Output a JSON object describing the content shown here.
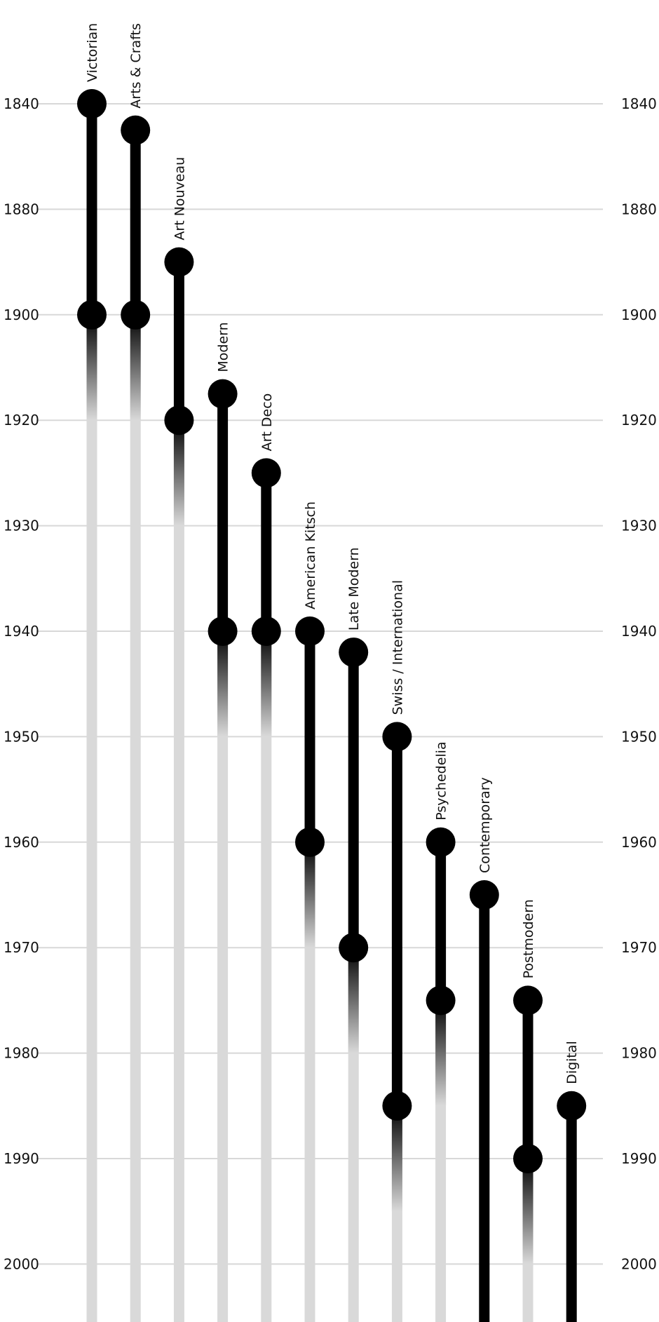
{
  "chart_data": {
    "type": "timeline",
    "title": "",
    "xlabel": "",
    "ylabel": "",
    "y_ticks": [
      1840,
      1880,
      1900,
      1920,
      1930,
      1940,
      1950,
      1960,
      1970,
      1980,
      1990,
      2000
    ],
    "grid": true,
    "colors": {
      "active": "#000000",
      "fade": "#d9d9d9",
      "grid": "#d8d8d8"
    },
    "eras": [
      {
        "name": "Victorian",
        "start": 1840,
        "end": 1900
      },
      {
        "name": "Arts & Crafts",
        "start": 1850,
        "end": 1900
      },
      {
        "name": "Art Nouveau",
        "start": 1890,
        "end": 1920
      },
      {
        "name": "Modern",
        "start": 1915,
        "end": 1940
      },
      {
        "name": "Art Deco",
        "start": 1925,
        "end": 1940
      },
      {
        "name": "American Kitsch",
        "start": 1940,
        "end": 1960
      },
      {
        "name": "Late Modern",
        "start": 1942,
        "end": 1970
      },
      {
        "name": "Swiss / International",
        "start": 1950,
        "end": 1985
      },
      {
        "name": "Psychedelia",
        "start": 1960,
        "end": 1975
      },
      {
        "name": "Contemporary",
        "start": 1965,
        "end": null
      },
      {
        "name": "Postmodern",
        "start": 1975,
        "end": 1990
      },
      {
        "name": "Digital",
        "start": 1985,
        "end": null
      }
    ]
  }
}
